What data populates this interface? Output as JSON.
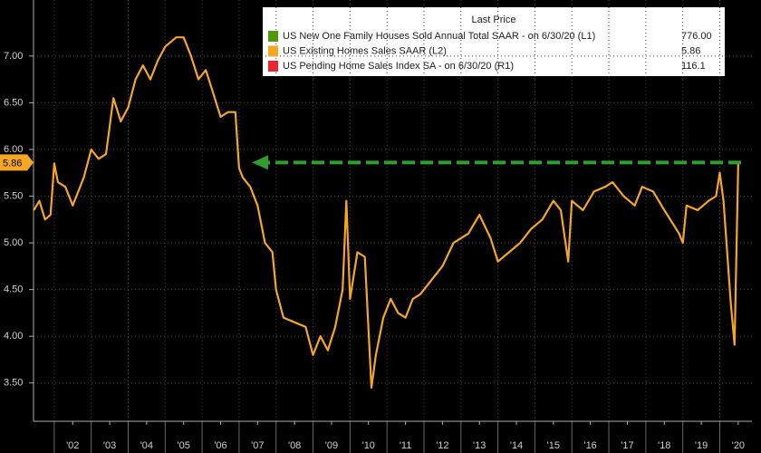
{
  "chart_data": {
    "type": "line",
    "legend_title": "Last Price",
    "legend": [
      {
        "name": "US New One Family Houses Sold Annual Total SAAR -  on 6/30/20  (L1)",
        "color": "#4e9a06",
        "last": "776.00"
      },
      {
        "name": "US Existing Homes Sales SAAR  (L2)",
        "color": "#f5a623",
        "last": "5.86"
      },
      {
        "name": "US Pending Home Sales Index SA -  on 6/30/20  (R1)",
        "color": "#e8262f",
        "last": "116.1"
      }
    ],
    "x": [
      2001.45,
      2001.6,
      2001.75,
      2001.9,
      2002.0,
      2002.1,
      2002.3,
      2002.5,
      2002.8,
      2003.0,
      2003.2,
      2003.4,
      2003.6,
      2003.8,
      2004.0,
      2004.2,
      2004.4,
      2004.6,
      2004.8,
      2005.0,
      2005.3,
      2005.5,
      2005.7,
      2005.9,
      2006.1,
      2006.3,
      2006.5,
      2006.7,
      2006.9,
      2007.0,
      2007.1,
      2007.3,
      2007.5,
      2007.7,
      2007.9,
      2008.0,
      2008.2,
      2008.5,
      2008.8,
      2009.0,
      2009.2,
      2009.4,
      2009.6,
      2009.8,
      2009.9,
      2010.0,
      2010.2,
      2010.4,
      2010.58,
      2010.7,
      2010.9,
      2011.1,
      2011.3,
      2011.5,
      2011.7,
      2011.9,
      2012.2,
      2012.5,
      2012.8,
      2013.2,
      2013.5,
      2013.8,
      2014.0,
      2014.3,
      2014.6,
      2014.9,
      2015.2,
      2015.5,
      2015.7,
      2015.9,
      2016.0,
      2016.3,
      2016.6,
      2016.9,
      2017.1,
      2017.4,
      2017.7,
      2017.9,
      2018.2,
      2018.5,
      2018.9,
      2019.0,
      2019.1,
      2019.4,
      2019.7,
      2019.9,
      2020.0,
      2020.1,
      2020.3,
      2020.4,
      2020.5
    ],
    "series": [
      {
        "name": "US Existing Homes Sales SAAR  (L2)",
        "color": "#f5a623",
        "values": [
          5.35,
          5.45,
          5.25,
          5.3,
          5.85,
          5.65,
          5.6,
          5.4,
          5.7,
          6.0,
          5.9,
          5.95,
          6.55,
          6.3,
          6.45,
          6.75,
          6.9,
          6.75,
          6.95,
          7.1,
          7.2,
          7.2,
          7.0,
          6.75,
          6.85,
          6.6,
          6.35,
          6.4,
          6.4,
          5.8,
          5.7,
          5.6,
          5.4,
          5.0,
          4.9,
          4.5,
          4.2,
          4.15,
          4.1,
          3.8,
          4.0,
          3.85,
          4.1,
          4.5,
          5.45,
          4.4,
          4.9,
          4.85,
          3.45,
          3.8,
          4.2,
          4.4,
          4.25,
          4.2,
          4.4,
          4.45,
          4.6,
          4.75,
          5.0,
          5.1,
          5.3,
          5.05,
          4.8,
          4.9,
          5.0,
          5.15,
          5.25,
          5.45,
          5.35,
          4.8,
          5.45,
          5.35,
          5.55,
          5.6,
          5.65,
          5.5,
          5.4,
          5.6,
          5.55,
          5.35,
          5.1,
          5.0,
          5.4,
          5.35,
          5.45,
          5.5,
          5.75,
          5.45,
          4.35,
          3.91,
          5.86
        ]
      }
    ],
    "last_value": {
      "value": 5.86,
      "label": "5.86"
    },
    "xlim": [
      2001.44,
      2020.87
    ],
    "xticks": [
      {
        "value": 2002.5,
        "label": "'02"
      },
      {
        "value": 2003.5,
        "label": "'03"
      },
      {
        "value": 2004.5,
        "label": "'04"
      },
      {
        "value": 2005.5,
        "label": "'05"
      },
      {
        "value": 2006.5,
        "label": "'06"
      },
      {
        "value": 2007.5,
        "label": "'07"
      },
      {
        "value": 2008.5,
        "label": "'08"
      },
      {
        "value": 2009.5,
        "label": "'09"
      },
      {
        "value": 2010.5,
        "label": "'10"
      },
      {
        "value": 2011.5,
        "label": "'11"
      },
      {
        "value": 2012.5,
        "label": "'12"
      },
      {
        "value": 2013.5,
        "label": "'13"
      },
      {
        "value": 2014.5,
        "label": "'14"
      },
      {
        "value": 2015.5,
        "label": "'15"
      },
      {
        "value": 2016.5,
        "label": "'16"
      },
      {
        "value": 2017.5,
        "label": "'17"
      },
      {
        "value": 2018.5,
        "label": "'18"
      },
      {
        "value": 2019.5,
        "label": "'19"
      },
      {
        "value": 2020.5,
        "label": "'20"
      }
    ],
    "ylim": [
      3.09,
      7.6
    ],
    "yticks": [
      {
        "value": 3.5,
        "label": "3.50"
      },
      {
        "value": 4,
        "label": "4.00"
      },
      {
        "value": 4.5,
        "label": "4.50"
      },
      {
        "value": 5,
        "label": "5.00"
      },
      {
        "value": 5.5,
        "label": "5.50"
      },
      {
        "value": 6,
        "label": "6.00"
      },
      {
        "value": 6.5,
        "label": "6.50"
      },
      {
        "value": 7,
        "label": "7.00"
      }
    ],
    "grid": true
  }
}
